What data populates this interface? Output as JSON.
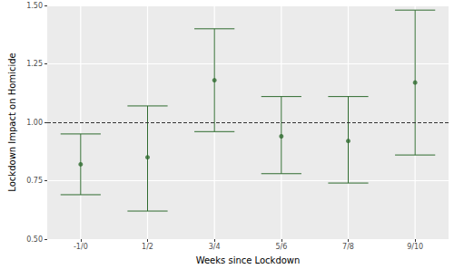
{
  "chart_data": {
    "type": "scatter",
    "x_label": "Weeks since Lockdown",
    "y_label": "Lockdown Impact on Homicide",
    "categories": [
      "-1/0",
      "1/2",
      "3/4",
      "5/6",
      "7/8",
      "9/10"
    ],
    "values": [
      0.82,
      0.85,
      1.18,
      0.94,
      0.92,
      1.17
    ],
    "lower": [
      0.69,
      0.62,
      0.96,
      0.78,
      0.74,
      0.86
    ],
    "upper": [
      0.95,
      1.07,
      1.4,
      1.11,
      1.11,
      1.48
    ],
    "color": "#2f6b2f",
    "marker": "circle",
    "reference_line": {
      "value": 1,
      "line_style": "dashed"
    },
    "ylim": [
      0.5,
      1.5
    ],
    "yticks": [
      {
        "value": 0.5,
        "label": "0.50"
      },
      {
        "value": 0.75,
        "label": "0.75"
      },
      {
        "value": 1,
        "label": "1.00"
      },
      {
        "value": 1.25,
        "label": "1.25"
      },
      {
        "value": 1.5,
        "label": "1.50"
      }
    ],
    "grid": true
  }
}
